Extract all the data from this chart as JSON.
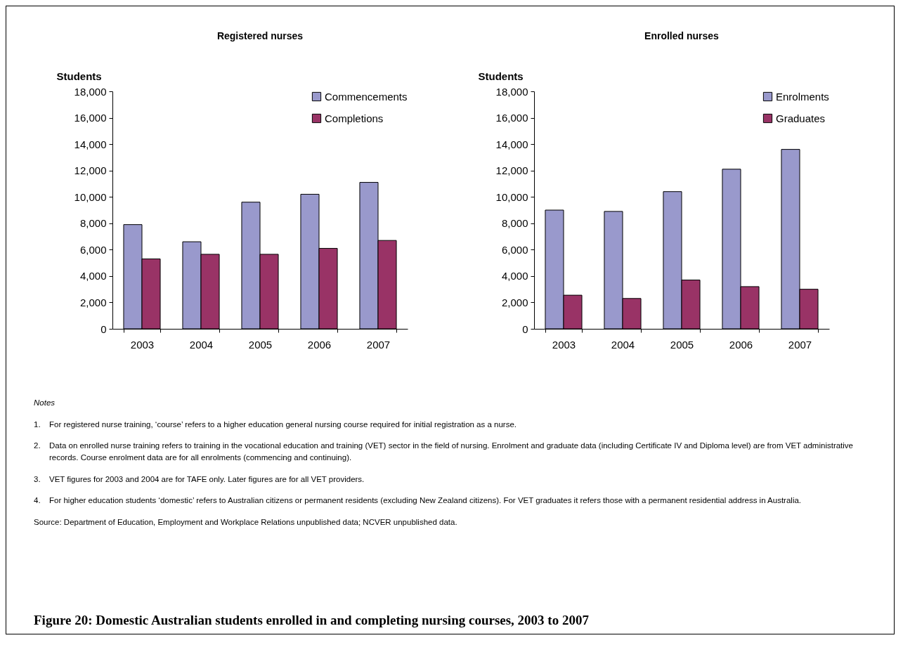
{
  "chart_data": [
    {
      "type": "bar",
      "title": "Registered nurses",
      "ylabel": "Students",
      "categories": [
        "2003",
        "2004",
        "2005",
        "2006",
        "2007"
      ],
      "series": [
        {
          "name": "Commencements",
          "color": "#9999cc",
          "values": [
            7900,
            6600,
            9600,
            10200,
            11100
          ]
        },
        {
          "name": "Completions",
          "color": "#993366",
          "values": [
            5300,
            5650,
            5650,
            6100,
            6700
          ]
        }
      ],
      "ylim": [
        0,
        18000
      ],
      "yticks": [
        {
          "value": 0,
          "label": "0"
        },
        {
          "value": 2000,
          "label": "2,000"
        },
        {
          "value": 4000,
          "label": "4,000"
        },
        {
          "value": 6000,
          "label": "6,000"
        },
        {
          "value": 8000,
          "label": "8,000"
        },
        {
          "value": 10000,
          "label": "10,000"
        },
        {
          "value": 12000,
          "label": "12,000"
        },
        {
          "value": 14000,
          "label": "14,000"
        },
        {
          "value": 16000,
          "label": "16,000"
        },
        {
          "value": 18000,
          "label": "18,000"
        }
      ],
      "grid": false,
      "legend": "top right"
    },
    {
      "type": "bar",
      "title": "Enrolled nurses",
      "ylabel": "Students",
      "categories": [
        "2003",
        "2004",
        "2005",
        "2006",
        "2007"
      ],
      "series": [
        {
          "name": "Enrolments",
          "color": "#9999cc",
          "values": [
            9000,
            8900,
            10400,
            12100,
            13600
          ]
        },
        {
          "name": "Graduates",
          "color": "#993366",
          "values": [
            2550,
            2300,
            3700,
            3200,
            3000
          ]
        }
      ],
      "ylim": [
        0,
        18000
      ],
      "yticks": [
        {
          "value": 0,
          "label": "0"
        },
        {
          "value": 2000,
          "label": "2,000"
        },
        {
          "value": 4000,
          "label": "4,000"
        },
        {
          "value": 6000,
          "label": "6,000"
        },
        {
          "value": 8000,
          "label": "8,000"
        },
        {
          "value": 10000,
          "label": "10,000"
        },
        {
          "value": 12000,
          "label": "12,000"
        },
        {
          "value": 14000,
          "label": "14,000"
        },
        {
          "value": 16000,
          "label": "16,000"
        },
        {
          "value": 18000,
          "label": "18,000"
        }
      ],
      "grid": false,
      "legend": "top right",
      "annotations": [
        "Notes",
        "1.\tFor registered nurse training, ‘course’ refers to a higher education general nursing course required for initial registration as a nurse.",
        "2.\tData on enrolled nurse training refers to training in the vocational education and training (VET) sector in the field of nursing. Enrolment and graduate data (including Certificate IV and Diploma level) are from VET administrative records. Course enrolment data are for all enrolments (commencing and continuing).",
        "3.\tVET figures for 2003 and 2004 are for TAFE only. Later figures are for all VET providers.",
        "4.\tFor higher education students ‘domestic’ refers to Australian citizens or permanent residents (excluding New Zealand citizens). For VET graduates it refers those with a permanent residential address in Australia.",
        "Source: Department of Education, Employment and Workplace Relations unpublished data; NCVER unpublished data.",
        "Figure 20: Domestic Australian students enrolled in and completing nursing courses, 2003 to 2007"
      ]
    }
  ]
}
